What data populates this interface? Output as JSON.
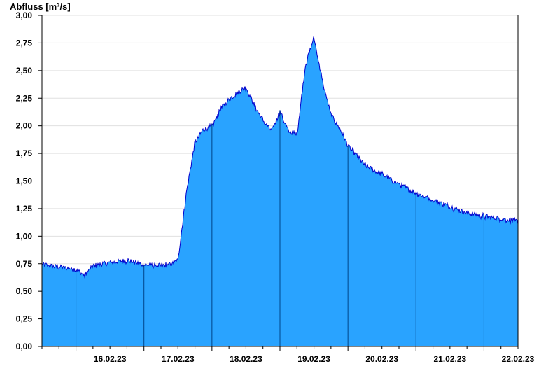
{
  "chart_data": {
    "type": "area",
    "title": "",
    "ylabel": "Abfluss [m³/s]",
    "xlabel": "",
    "ylim": [
      0,
      3.0
    ],
    "x_range_days": [
      "15.02.23 12:00",
      "22.02.23 12:00"
    ],
    "y_ticks": [
      "0,00",
      "0,25",
      "0,50",
      "0,75",
      "1,00",
      "1,25",
      "1,50",
      "1,75",
      "2,00",
      "2,25",
      "2,50",
      "2,75",
      "3,00"
    ],
    "x_tick_labels": [
      "16.02.23",
      "17.02.23",
      "18.02.23",
      "19.02.23",
      "20.02.23",
      "21.02.23",
      "22.02.23"
    ],
    "grid": "horizontal",
    "colors": {
      "fill": "#29a3ff",
      "line": "#0000cc",
      "vline": "#004488",
      "grid": "#e0e0e0",
      "axis": "#000000"
    },
    "series": [
      {
        "x": [
          "15.02.23 12:00",
          "15.02.23 18:00",
          "16.02.23 00:00",
          "16.02.23 03:00",
          "16.02.23 06:00",
          "16.02.23 12:00",
          "16.02.23 18:00",
          "17.02.23 00:00",
          "17.02.23 06:00",
          "17.02.23 09:00",
          "17.02.23 12:00",
          "17.02.23 15:00",
          "17.02.23 18:00",
          "17.02.23 21:00",
          "18.02.23 00:00",
          "18.02.23 03:00",
          "18.02.23 06:00",
          "18.02.23 09:00",
          "18.02.23 12:00",
          "18.02.23 15:00",
          "18.02.23 18:00",
          "18.02.23 21:00",
          "19.02.23 00:00",
          "19.02.23 03:00",
          "19.02.23 06:00",
          "19.02.23 09:00",
          "19.02.23 12:00",
          "19.02.23 15:00",
          "19.02.23 18:00",
          "19.02.23 21:00",
          "20.02.23 00:00",
          "20.02.23 06:00",
          "20.02.23 12:00",
          "20.02.23 18:00",
          "21.02.23 00:00",
          "21.02.23 06:00",
          "21.02.23 12:00",
          "21.02.23 18:00",
          "22.02.23 00:00",
          "22.02.23 06:00",
          "22.02.23 12:00"
        ],
        "y": [
          0.74,
          0.72,
          0.7,
          0.64,
          0.73,
          0.76,
          0.78,
          0.74,
          0.73,
          0.74,
          0.78,
          1.4,
          1.85,
          1.97,
          1.99,
          2.15,
          2.24,
          2.3,
          2.35,
          2.18,
          2.05,
          1.95,
          2.13,
          1.95,
          1.92,
          2.55,
          2.8,
          2.4,
          2.1,
          1.98,
          1.82,
          1.64,
          1.56,
          1.47,
          1.39,
          1.33,
          1.27,
          1.21,
          1.18,
          1.16,
          1.13
        ]
      }
    ]
  }
}
